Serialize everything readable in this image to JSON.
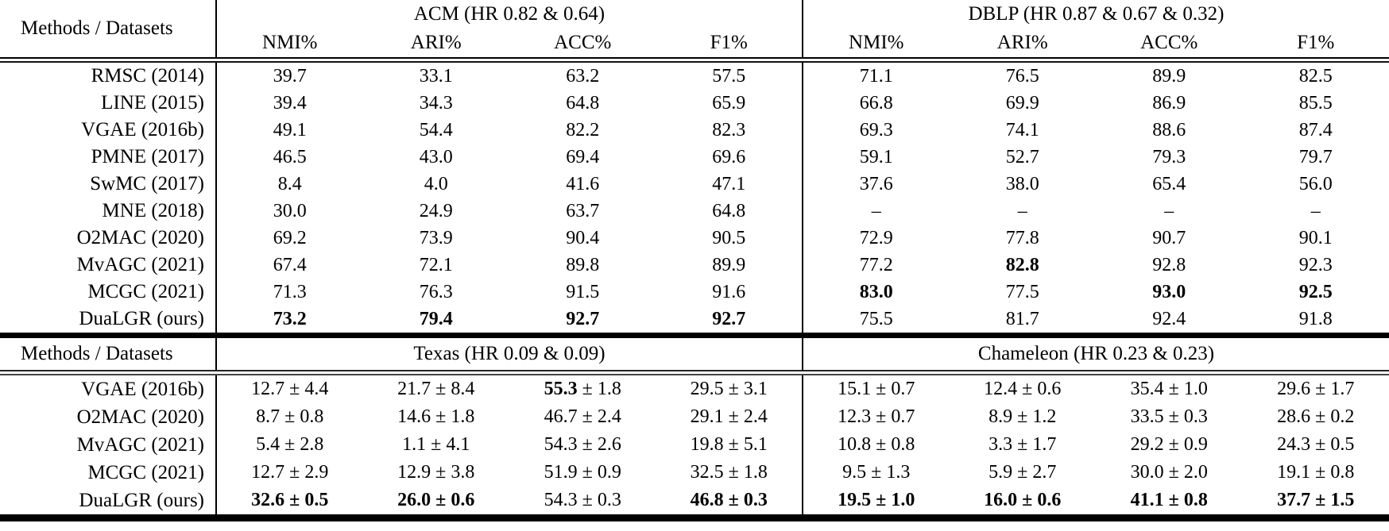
{
  "table": {
    "sections": [
      {
        "corner_label": "Methods / Datasets",
        "groups": [
          {
            "title": "ACM (HR 0.82 & 0.64)",
            "columns": [
              "NMI%",
              "ARI%",
              "ACC%",
              "F1%"
            ]
          },
          {
            "title": "DBLP (HR 0.87 & 0.67 & 0.32)",
            "columns": [
              "NMI%",
              "ARI%",
              "ACC%",
              "F1%"
            ]
          }
        ],
        "rows": [
          {
            "method": "RMSC (2014)",
            "cells": [
              "39.7",
              "33.1",
              "63.2",
              "57.5",
              "71.1",
              "76.5",
              "89.9",
              "82.5"
            ]
          },
          {
            "method": "LINE (2015)",
            "cells": [
              "39.4",
              "34.3",
              "64.8",
              "65.9",
              "66.8",
              "69.9",
              "86.9",
              "85.5"
            ]
          },
          {
            "method": "VGAE (2016b)",
            "cells": [
              "49.1",
              "54.4",
              "82.2",
              "82.3",
              "69.3",
              "74.1",
              "88.6",
              "87.4"
            ]
          },
          {
            "method": "PMNE (2017)",
            "cells": [
              "46.5",
              "43.0",
              "69.4",
              "69.6",
              "59.1",
              "52.7",
              "79.3",
              "79.7"
            ]
          },
          {
            "method": "SwMC (2017)",
            "cells": [
              "8.4",
              "4.0",
              "41.6",
              "47.1",
              "37.6",
              "38.0",
              "65.4",
              "56.0"
            ]
          },
          {
            "method": "MNE (2018)",
            "cells": [
              "30.0",
              "24.9",
              "63.7",
              "64.8",
              "–",
              "–",
              "–",
              "–"
            ]
          },
          {
            "method": "O2MAC (2020)",
            "cells": [
              "69.2",
              "73.9",
              "90.4",
              "90.5",
              "72.9",
              "77.8",
              "90.7",
              "90.1"
            ]
          },
          {
            "method": "MvAGC (2021)",
            "cells": [
              "67.4",
              "72.1",
              "89.8",
              "89.9",
              "77.2",
              "**82.8**",
              "92.8",
              "92.3"
            ]
          },
          {
            "method": "MCGC (2021)",
            "cells": [
              "71.3",
              "76.3",
              "91.5",
              "91.6",
              "**83.0**",
              "77.5",
              "**93.0**",
              "**92.5**"
            ]
          },
          {
            "method": "DuaLGR (ours)",
            "cells": [
              "**73.2**",
              "**79.4**",
              "**92.7**",
              "**92.7**",
              "75.5",
              "81.7",
              "92.4",
              "91.8"
            ]
          }
        ]
      },
      {
        "corner_label": "Methods / Datasets",
        "groups": [
          {
            "title": "Texas (HR 0.09 & 0.09)"
          },
          {
            "title": "Chameleon (HR 0.23 & 0.23)"
          }
        ],
        "rows": [
          {
            "method": "VGAE (2016b)",
            "cells": [
              "12.7 ± 4.4",
              "21.7 ± 8.4",
              "**55.3** ± 1.8",
              "29.5 ± 3.1",
              "15.1 ± 0.7",
              "12.4 ± 0.6",
              "35.4 ± 1.0",
              "29.6 ± 1.7"
            ]
          },
          {
            "method": "O2MAC (2020)",
            "cells": [
              "8.7 ± 0.8",
              "14.6 ± 1.8",
              "46.7 ± 2.4",
              "29.1 ± 2.4",
              "12.3 ± 0.7",
              "8.9 ± 1.2",
              "33.5 ± 0.3",
              "28.6 ± 0.2"
            ]
          },
          {
            "method": "MvAGC (2021)",
            "cells": [
              "5.4 ± 2.8",
              "1.1 ± 4.1",
              "54.3 ± 2.6",
              "19.8 ± 5.1",
              "10.8 ± 0.8",
              "3.3 ± 1.7",
              "29.2 ± 0.9",
              "24.3 ± 0.5"
            ]
          },
          {
            "method": "MCGC (2021)",
            "cells": [
              "12.7 ± 2.9",
              "12.9 ± 3.8",
              "51.9 ± 0.9",
              "32.5 ± 1.8",
              "9.5 ± 1.3",
              "5.9 ± 2.7",
              "30.0 ± 2.0",
              "19.1 ± 0.8"
            ]
          },
          {
            "method": "DuaLGR (ours)",
            "cells": [
              "**32.6 ± 0.5**",
              "**26.0 ± 0.6**",
              "54.3 ± 0.3",
              "**46.8 ± 0.3**",
              "**19.5 ± 1.0**",
              "**16.0 ± 0.6**",
              "**41.1 ± 0.8**",
              "**37.7 ± 1.5**"
            ]
          }
        ]
      }
    ]
  }
}
